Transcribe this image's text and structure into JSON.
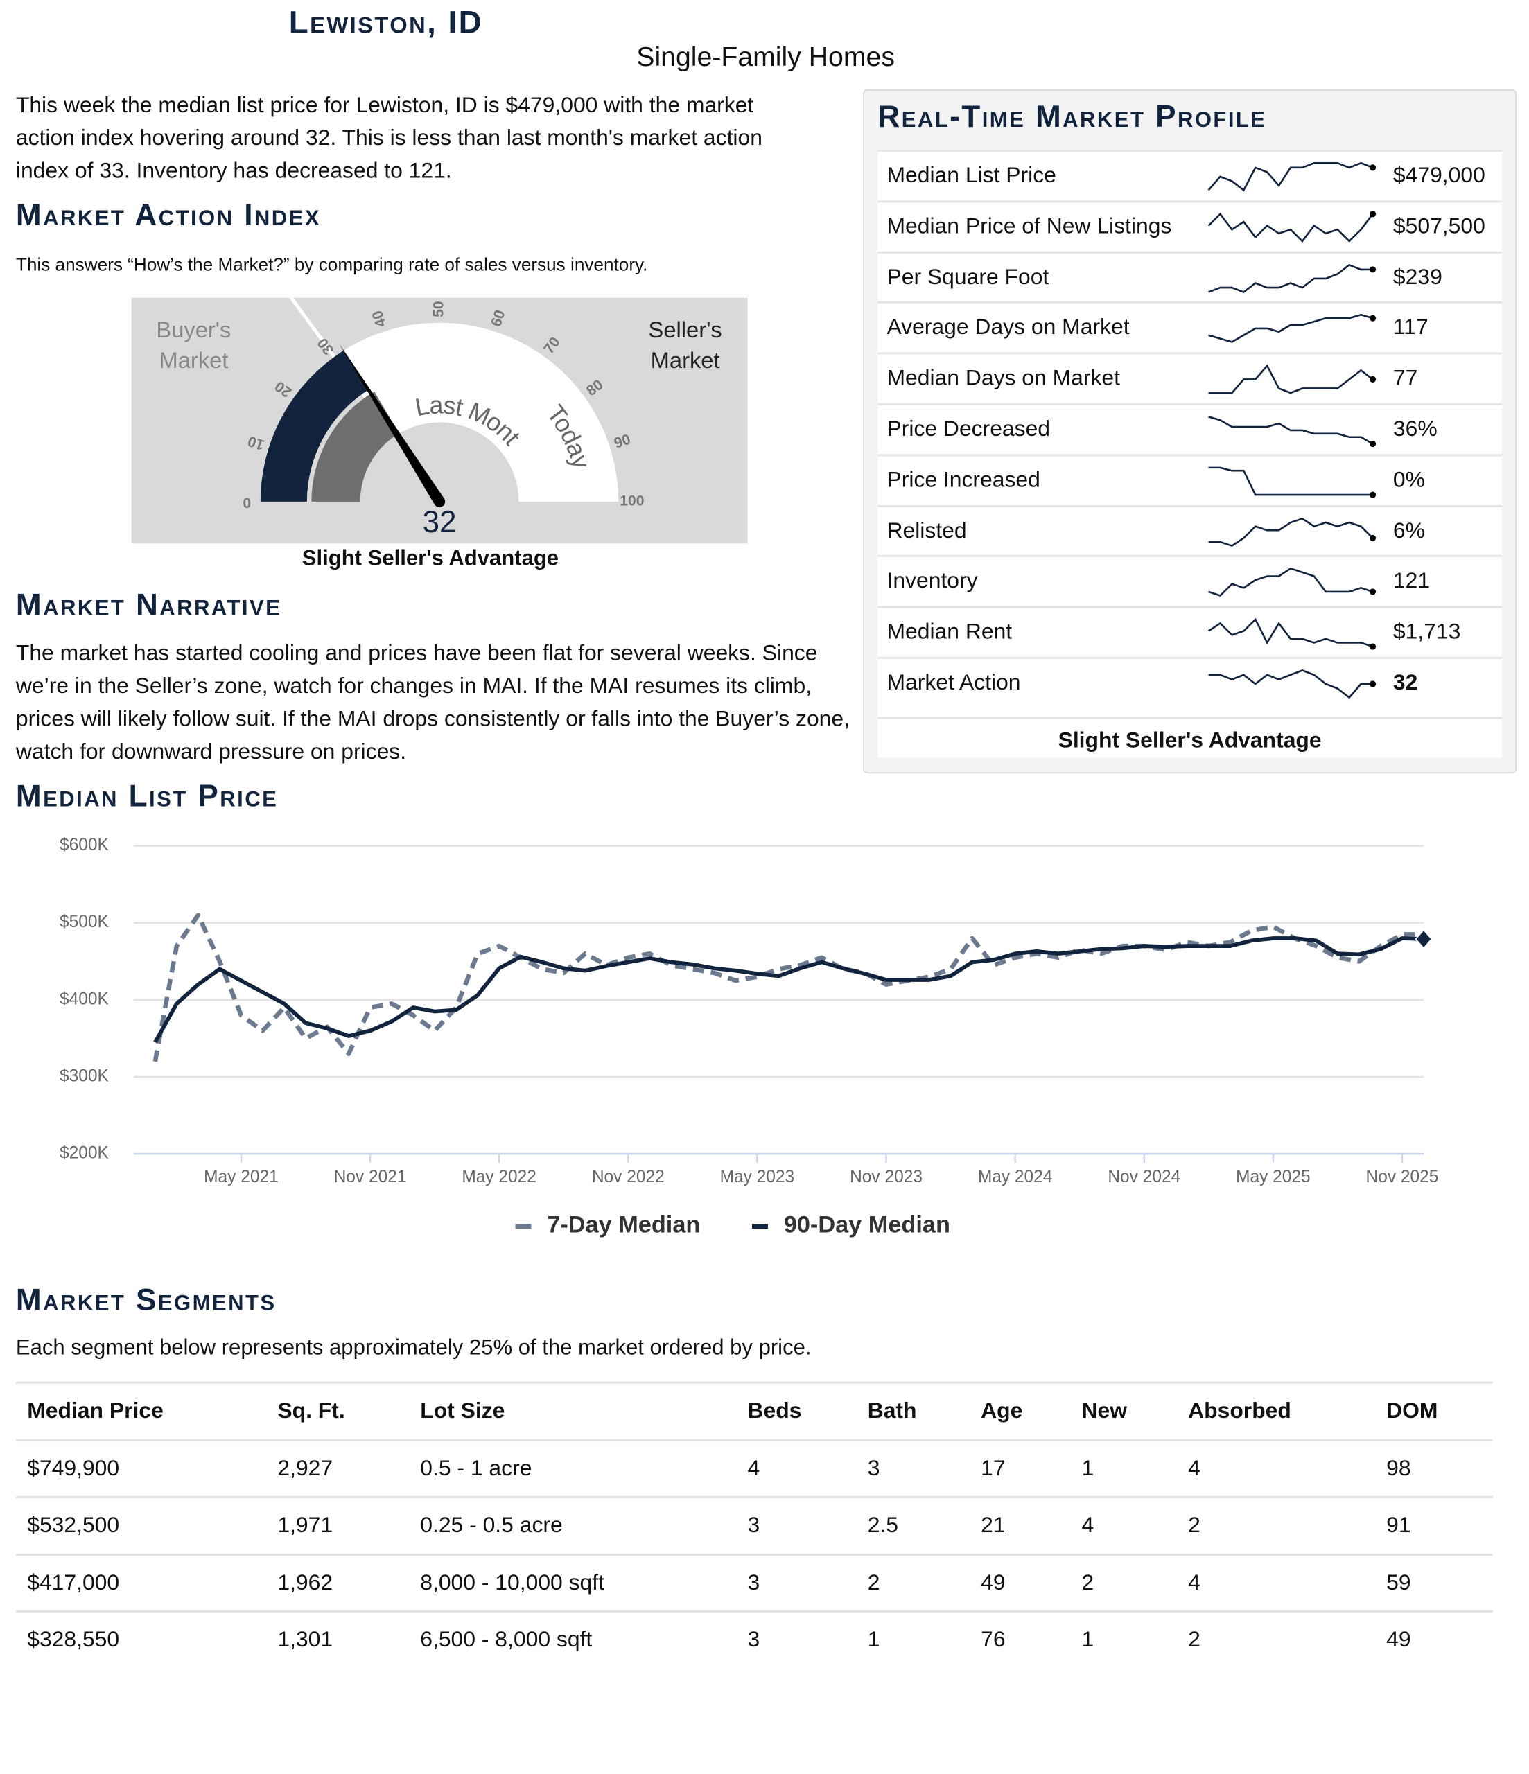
{
  "header": {
    "title": "Lewiston, ID",
    "subtitle": "Single-Family Homes"
  },
  "intro": "This week the median list price for Lewiston, ID is $479,000 with the market action index hovering around 32. This is less than last month's market action index of 33. Inventory has decreased to 121.",
  "market_action_index": {
    "heading": "Market Action Index",
    "description": "This answers “How’s the Market?” by comparing rate of sales versus inventory.",
    "gauge": {
      "type": "gauge",
      "value": 32,
      "last_month": 33,
      "lim": [
        0,
        100
      ],
      "ticks": [
        0,
        10,
        20,
        30,
        40,
        50,
        60,
        70,
        80,
        90,
        100
      ],
      "seller_zone_start": 30,
      "buyer_label": "Buyer's Market",
      "seller_label": "Seller's Market",
      "last_month_label": "Last Month",
      "today_label": "Today",
      "today_color": "#12233d",
      "last_month_color": "#6e6e6e"
    },
    "caption": "Slight Seller's Advantage"
  },
  "narrative": {
    "heading": "Market Narrative",
    "text": "The market has started cooling and prices have been flat for several weeks. Since we’re in the Seller’s zone, watch for changes in MAI. If the MAI resumes its climb, prices will likely follow suit. If the MAI drops consistently or falls into the Buyer’s zone, watch for downward pressure on prices."
  },
  "profile": {
    "heading": "Real-Time Market Profile",
    "caption": "Slight Seller's Advantage",
    "rows": [
      {
        "label": "Median List Price",
        "value": "$479,000",
        "trend": [
          2,
          5,
          4,
          2,
          7,
          6,
          3,
          7,
          7,
          8,
          8,
          8,
          7,
          8,
          7
        ]
      },
      {
        "label": "Median Price of New Listings",
        "value": "$507,500",
        "trend": [
          6,
          9,
          5,
          7,
          3,
          6,
          4,
          5,
          2,
          6,
          4,
          5,
          2,
          5,
          9
        ]
      },
      {
        "label": "Per Square Foot",
        "value": "$239",
        "trend": [
          1,
          2,
          2,
          1,
          3,
          2,
          2,
          3,
          2,
          4,
          4,
          5,
          7,
          6,
          6
        ]
      },
      {
        "label": "Average Days on Market",
        "value": "117",
        "trend": [
          3,
          2,
          1,
          3,
          5,
          5,
          4,
          6,
          6,
          7,
          8,
          8,
          8,
          9,
          8
        ]
      },
      {
        "label": "Median Days on Market",
        "value": "77",
        "trend": [
          2,
          2,
          2,
          5,
          5,
          8,
          3,
          2,
          3,
          3,
          3,
          3,
          5,
          7,
          5
        ]
      },
      {
        "label": "Price Decreased",
        "value": "36%",
        "trend": [
          9,
          8,
          6,
          6,
          6,
          6,
          7,
          5,
          5,
          4,
          4,
          4,
          3,
          3,
          1
        ]
      },
      {
        "label": "Price Increased",
        "value": "0%",
        "trend": [
          9,
          9,
          8,
          8,
          0,
          0,
          0,
          0,
          0,
          0,
          0,
          0,
          0,
          0,
          0
        ]
      },
      {
        "label": "Relisted",
        "value": "6%",
        "trend": [
          2,
          2,
          1,
          3,
          6,
          5,
          5,
          7,
          8,
          6,
          7,
          6,
          7,
          6,
          3
        ]
      },
      {
        "label": "Inventory",
        "value": "121",
        "trend": [
          2,
          1,
          4,
          3,
          5,
          6,
          6,
          8,
          7,
          6,
          2,
          2,
          2,
          3,
          2
        ]
      },
      {
        "label": "Median Rent",
        "value": "$1,713",
        "trend": [
          6,
          8,
          5,
          6,
          9,
          3,
          8,
          4,
          4,
          3,
          4,
          3,
          3,
          3,
          2
        ]
      },
      {
        "label": "Market Action",
        "value": "32",
        "trend": [
          7,
          7,
          6,
          7,
          5,
          7,
          6,
          7,
          8,
          7,
          5,
          4,
          2,
          5,
          5
        ]
      }
    ]
  },
  "chart_data": {
    "type": "line",
    "title": "Median List Price",
    "x": [
      "2021-01",
      "2021-02",
      "2021-03",
      "2021-04",
      "2021-05",
      "2021-06",
      "2021-07",
      "2021-08",
      "2021-09",
      "2021-10",
      "2021-11",
      "2021-12",
      "2022-01",
      "2022-02",
      "2022-03",
      "2022-04",
      "2022-05",
      "2022-06",
      "2022-07",
      "2022-08",
      "2022-09",
      "2022-10",
      "2022-11",
      "2022-12",
      "2023-01",
      "2023-02",
      "2023-03",
      "2023-04",
      "2023-05",
      "2023-06",
      "2023-07",
      "2023-08",
      "2023-09",
      "2023-10",
      "2023-11",
      "2023-12",
      "2024-01",
      "2024-02",
      "2024-03",
      "2024-04",
      "2024-05",
      "2024-06",
      "2024-07",
      "2024-08",
      "2024-09",
      "2024-10",
      "2024-11",
      "2024-12",
      "2025-01",
      "2025-02",
      "2025-03",
      "2025-04",
      "2025-05",
      "2025-06",
      "2025-07",
      "2025-08",
      "2025-09",
      "2025-10",
      "2025-11",
      "2025-12"
    ],
    "series": [
      {
        "name": "7-Day Median",
        "color": "#6b7a8f",
        "dashed": true,
        "values": [
          320000,
          470000,
          510000,
          450000,
          380000,
          360000,
          390000,
          350000,
          365000,
          330000,
          390000,
          395000,
          380000,
          360000,
          390000,
          460000,
          470000,
          455000,
          440000,
          435000,
          460000,
          445000,
          455000,
          460000,
          445000,
          440000,
          435000,
          425000,
          430000,
          440000,
          445000,
          455000,
          440000,
          435000,
          420000,
          425000,
          430000,
          440000,
          480000,
          445000,
          455000,
          460000,
          455000,
          465000,
          460000,
          470000,
          470000,
          465000,
          475000,
          470000,
          475000,
          490000,
          495000,
          480000,
          470000,
          455000,
          450000,
          470000,
          485000,
          485000
        ]
      },
      {
        "name": "90-Day Median",
        "color": "#12233d",
        "dashed": false,
        "values": [
          345000,
          395000,
          420000,
          440000,
          425000,
          410000,
          395000,
          370000,
          363000,
          353000,
          360000,
          372000,
          390000,
          385000,
          387000,
          406000,
          441000,
          456000,
          449000,
          441000,
          438000,
          444000,
          449000,
          454000,
          449000,
          446000,
          441000,
          438000,
          434000,
          431000,
          441000,
          449000,
          441000,
          434000,
          426000,
          426000,
          426000,
          431000,
          449000,
          452000,
          460000,
          463000,
          460000,
          463000,
          466000,
          467000,
          470000,
          469000,
          470000,
          470000,
          470000,
          477000,
          480000,
          480000,
          477000,
          460000,
          459000,
          466000,
          480000,
          479000
        ]
      }
    ],
    "xlim": [
      "2020-12",
      "2025-12"
    ],
    "xticks": [
      {
        "value": "2021-05",
        "label": "May 2021"
      },
      {
        "value": "2021-11",
        "label": "Nov 2021"
      },
      {
        "value": "2022-05",
        "label": "May 2022"
      },
      {
        "value": "2022-11",
        "label": "Nov 2022"
      },
      {
        "value": "2023-05",
        "label": "May 2023"
      },
      {
        "value": "2023-11",
        "label": "Nov 2023"
      },
      {
        "value": "2024-05",
        "label": "May 2024"
      },
      {
        "value": "2024-11",
        "label": "Nov 2024"
      },
      {
        "value": "2025-05",
        "label": "May 2025"
      },
      {
        "value": "2025-11",
        "label": "Nov 2025"
      }
    ],
    "ylim": [
      200000,
      600000
    ],
    "yticks": [
      {
        "value": 200000,
        "label": "$200K"
      },
      {
        "value": 300000,
        "label": "$300K"
      },
      {
        "value": 400000,
        "label": "$400K"
      },
      {
        "value": 500000,
        "label": "$500K"
      },
      {
        "value": 600000,
        "label": "$600K"
      }
    ],
    "grid": true
  },
  "segments": {
    "heading": "Market Segments",
    "description": "Each segment below represents approximately 25% of the market ordered by price.",
    "columns": [
      "Median Price",
      "Sq. Ft.",
      "Lot Size",
      "Beds",
      "Bath",
      "Age",
      "New",
      "Absorbed",
      "DOM"
    ],
    "rows": [
      [
        "$749,900",
        "2,927",
        "0.5 - 1 acre",
        "4",
        "3",
        "17",
        "1",
        "4",
        "98"
      ],
      [
        "$532,500",
        "1,971",
        "0.25 - 0.5 acre",
        "3",
        "2.5",
        "21",
        "4",
        "2",
        "91"
      ],
      [
        "$417,000",
        "1,962",
        "8,000 - 10,000 sqft",
        "3",
        "2",
        "49",
        "2",
        "4",
        "59"
      ],
      [
        "$328,550",
        "1,301",
        "6,500 - 8,000 sqft",
        "3",
        "1",
        "76",
        "1",
        "2",
        "49"
      ]
    ]
  }
}
